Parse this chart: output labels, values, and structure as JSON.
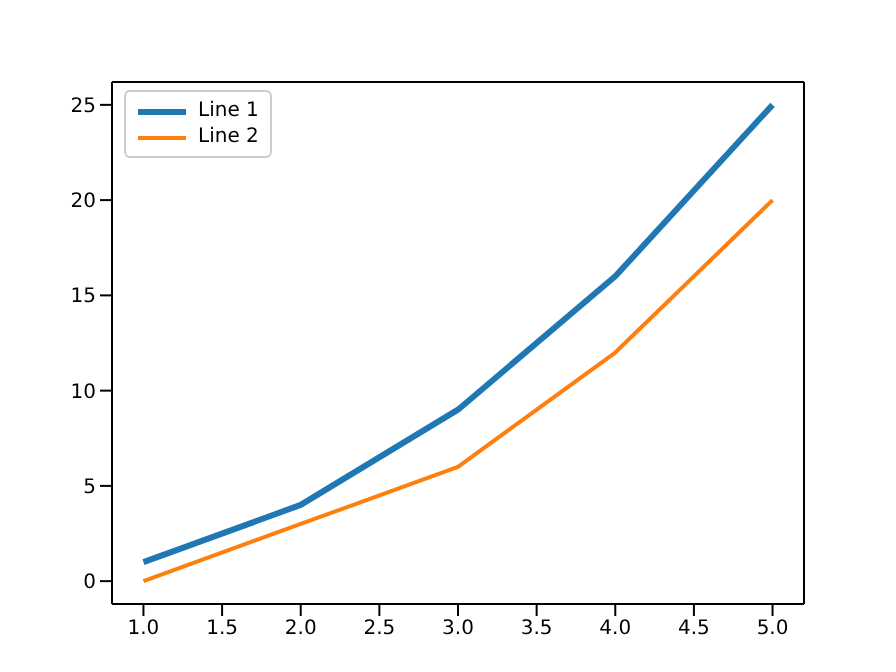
{
  "chart_data": {
    "type": "line",
    "x": [
      1,
      2,
      3,
      4,
      5
    ],
    "series": [
      {
        "name": "Line 1",
        "color": "#1f77b4",
        "values": [
          1,
          4,
          9,
          16,
          25
        ]
      },
      {
        "name": "Line 2",
        "color": "#ff7f0e",
        "values": [
          0,
          3,
          6,
          12,
          20
        ]
      }
    ],
    "xlim": [
      0.8,
      5.2
    ],
    "xticks": [
      {
        "value": 1,
        "label": "1.0"
      },
      {
        "value": 1.5,
        "label": "1.5"
      },
      {
        "value": 2,
        "label": "2.0"
      },
      {
        "value": 2.5,
        "label": "2.5"
      },
      {
        "value": 3,
        "label": "3.0"
      },
      {
        "value": 3.5,
        "label": "3.5"
      },
      {
        "value": 4,
        "label": "4.0"
      },
      {
        "value": 4.5,
        "label": "4.5"
      },
      {
        "value": 5,
        "label": "5.0"
      }
    ],
    "ylim": [
      -1.2,
      26.2
    ],
    "yticks": [
      0,
      5,
      10,
      15,
      20,
      25
    ],
    "legend": "top left",
    "grid": false,
    "marker": "none",
    "line_style": "solid"
  }
}
